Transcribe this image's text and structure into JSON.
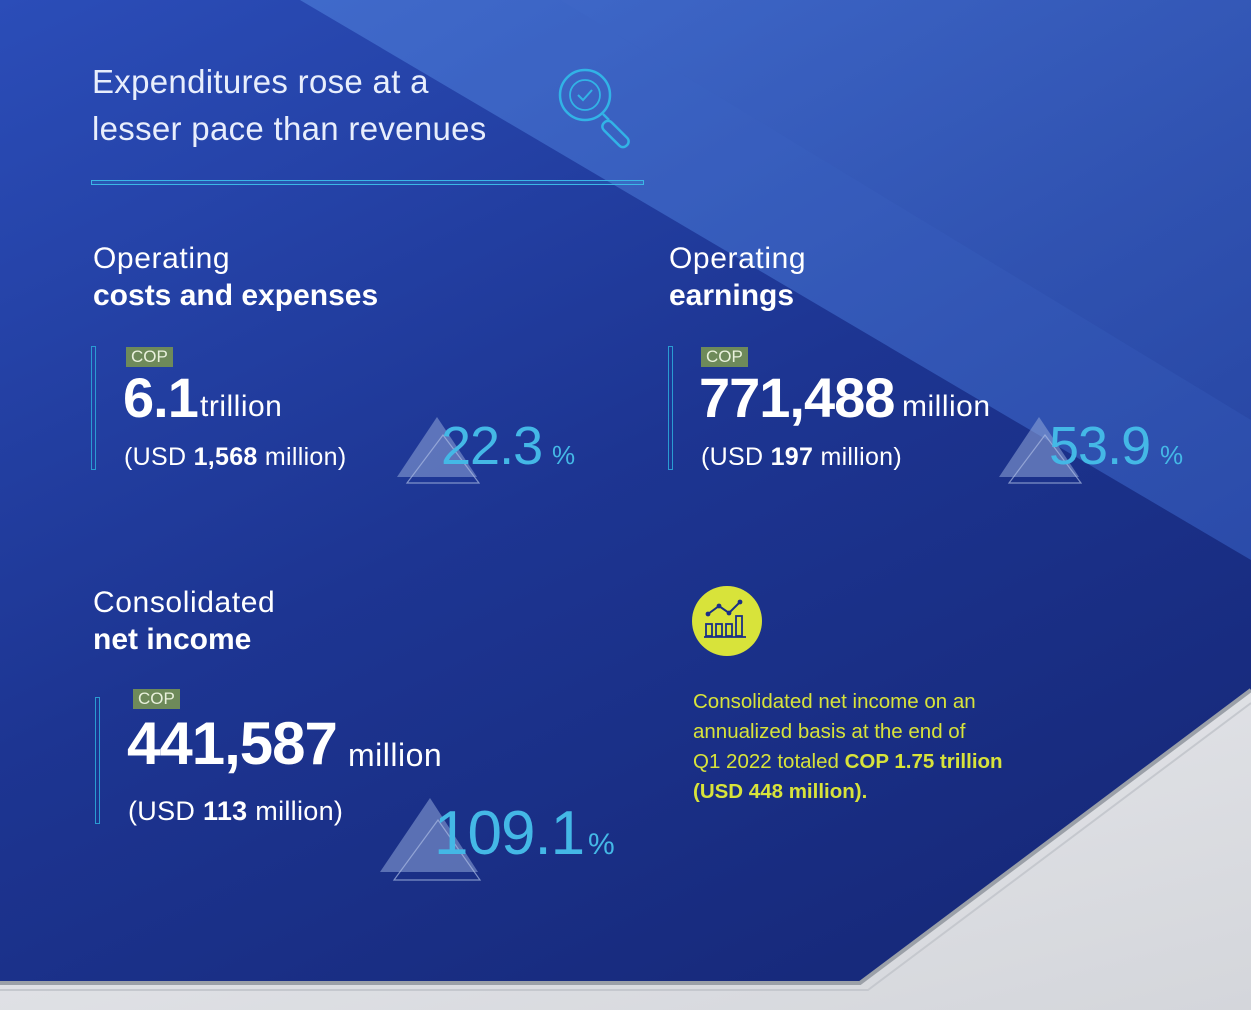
{
  "title": {
    "line1": "Expenditures rose at a",
    "line2": "lesser pace than revenues"
  },
  "icons": {
    "header": "search-check-icon",
    "note": "growth-chart-icon"
  },
  "colors": {
    "background": "#1a2f86",
    "accent_cyan": "#44b8e6",
    "cop_tag": "#6e8a5a",
    "note_yellow": "#d8e33a"
  },
  "metrics": [
    {
      "label_line1": "Operating",
      "label_line2": "costs and expenses",
      "currency_tag": "COP",
      "value": "6.1",
      "unit": "trillion",
      "usd_prefix": "(USD",
      "usd_value": "1,568",
      "usd_suffix": "million)",
      "change": "22.3",
      "change_sign": "%"
    },
    {
      "label_line1": "Operating",
      "label_line2": "earnings",
      "currency_tag": "COP",
      "value": "771,488",
      "unit": "million",
      "usd_prefix": "(USD",
      "usd_value": "197",
      "usd_suffix": "million)",
      "change": "53.9",
      "change_sign": "%"
    },
    {
      "label_line1": "Consolidated",
      "label_line2": "net income",
      "currency_tag": "COP",
      "value": "441,587",
      "unit": "million",
      "usd_prefix": "(USD",
      "usd_value": "113",
      "usd_suffix": "million)",
      "change": "109.1",
      "change_sign": "%"
    }
  ],
  "note": {
    "line1": "Consolidated net income on an",
    "line2": "annualized basis at the end of",
    "line3_plain": "Q1 2022 totaled ",
    "line3_bold": "COP 1.75 trillion",
    "line4_bold": "(USD 448 million)."
  }
}
